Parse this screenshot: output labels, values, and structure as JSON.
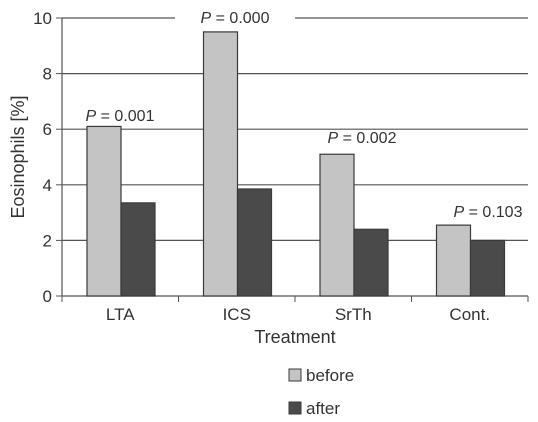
{
  "chart_data": {
    "type": "bar",
    "title": "",
    "xlabel": "Treatment",
    "ylabel": "Eosinophils [%]",
    "ylim": [
      0,
      10
    ],
    "yticks": [
      0,
      2,
      4,
      6,
      8,
      10
    ],
    "grid": true,
    "legend_position": "bottom-center",
    "categories": [
      "LTA",
      "ICS",
      "SrTh",
      "Cont."
    ],
    "series": [
      {
        "name": "before",
        "values": [
          6.1,
          9.5,
          5.1,
          2.55
        ],
        "color": "#c4c4c4"
      },
      {
        "name": "after",
        "values": [
          3.35,
          3.85,
          2.4,
          2.0
        ],
        "color": "#4a4a4a"
      }
    ],
    "annotations": [
      {
        "italic": "P",
        "text": " = 0.001"
      },
      {
        "italic": "P",
        "text": " = 0.000"
      },
      {
        "italic": "P",
        "text": " = 0.002"
      },
      {
        "italic": "P",
        "text": " = 0.103"
      }
    ]
  }
}
